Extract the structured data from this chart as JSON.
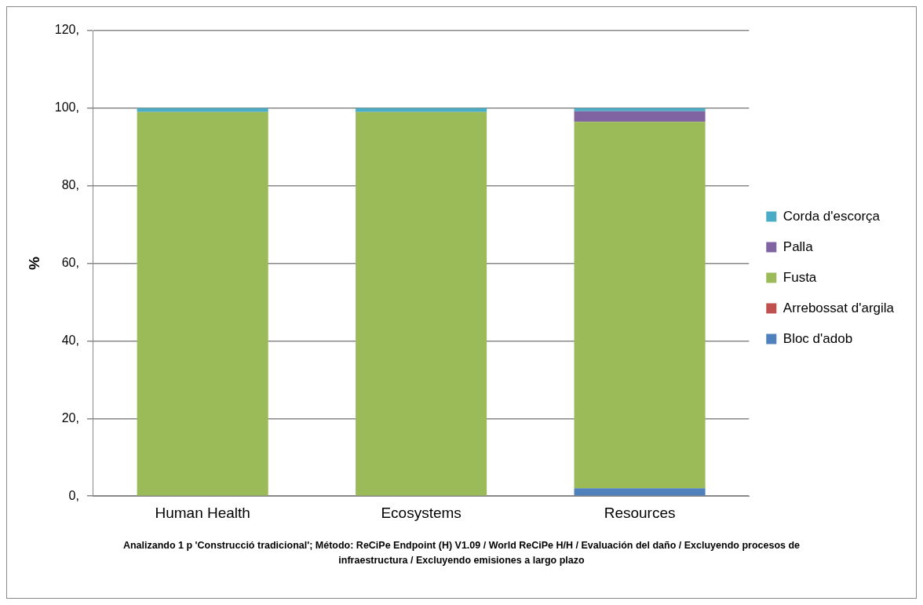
{
  "chart_data": {
    "type": "bar",
    "stacked": true,
    "ylabel": "%",
    "categories": [
      "Human Health",
      "Ecosystems",
      "Resources"
    ],
    "series": [
      {
        "name": "Bloc d'adob",
        "color": "#4f81bd",
        "values": [
          0,
          0,
          2
        ]
      },
      {
        "name": "Arrebossat d'argila",
        "color": "#c0504d",
        "values": [
          0,
          0,
          0
        ]
      },
      {
        "name": "Fusta",
        "color": "#9bbb59",
        "values": [
          99,
          99,
          94.5
        ]
      },
      {
        "name": "Palla",
        "color": "#8064a2",
        "values": [
          0,
          0,
          2.7
        ]
      },
      {
        "name": "Corda d'escorça",
        "color": "#4bacc6",
        "values": [
          1,
          1,
          0.8
        ]
      }
    ],
    "ylim": [
      0,
      120
    ],
    "yticks": [
      {
        "value": 0,
        "label": "0,"
      },
      {
        "value": 20,
        "label": "20,"
      },
      {
        "value": 40,
        "label": "40,"
      },
      {
        "value": 60,
        "label": "60,"
      },
      {
        "value": 80,
        "label": "80,"
      },
      {
        "value": 100,
        "label": "100,"
      },
      {
        "value": 120,
        "label": "120,"
      }
    ],
    "grid": "y",
    "legend": "right",
    "annotations": [
      "Analizando 1 p 'Construcció tradicional';  Método: ReCiPe Endpoint (H) V1.09 / World ReCiPe H/H / Evaluación del daño / Excluyendo procesos de infraestructura / Excluyendo emisiones a largo plazo"
    ]
  }
}
